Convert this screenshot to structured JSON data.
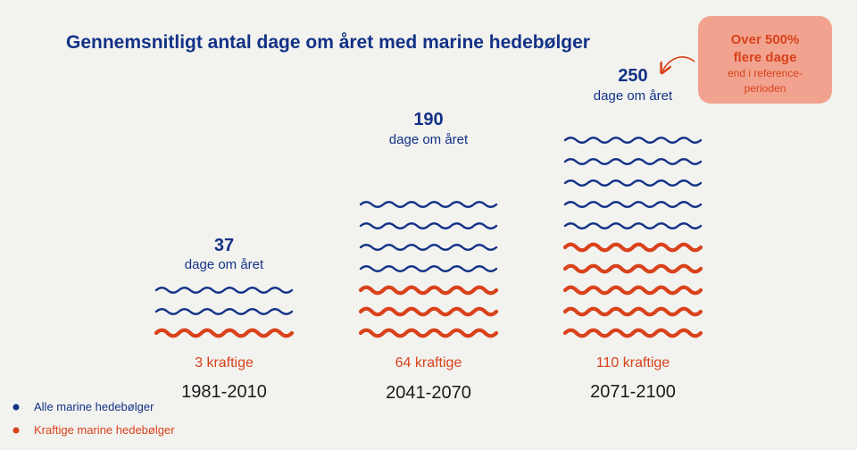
{
  "chart_data": {
    "type": "bar",
    "title": "Gennemsnitligt antal dage om året med marine hedebølger",
    "categories": [
      "1981-2010",
      "2041-2070",
      "2071-2100"
    ],
    "series": [
      {
        "name": "Alle marine hedebølger",
        "values": [
          37,
          190,
          250
        ],
        "labels": [
          "37",
          "190",
          "250"
        ],
        "unit_label": "dage om året",
        "color": "#123286"
      },
      {
        "name": "Kraftige marine hedebølger",
        "values": [
          3,
          64,
          110
        ],
        "labels": [
          "3 kraftige",
          "64 kraftige",
          "110 kraftige"
        ],
        "color": "#d9421b"
      }
    ],
    "icon_counts": {
      "all_waves": [
        3,
        7,
        10
      ],
      "strong_waves": [
        1,
        3,
        5
      ]
    },
    "callout": {
      "line1": "Over 500%",
      "line2": "flere dage",
      "line3": "end i reference-",
      "line4": "perioden",
      "background": "#f2a38f"
    },
    "colors": {
      "background": "#f2f2ef",
      "navy": "#123286",
      "orange": "#d9421b"
    }
  }
}
